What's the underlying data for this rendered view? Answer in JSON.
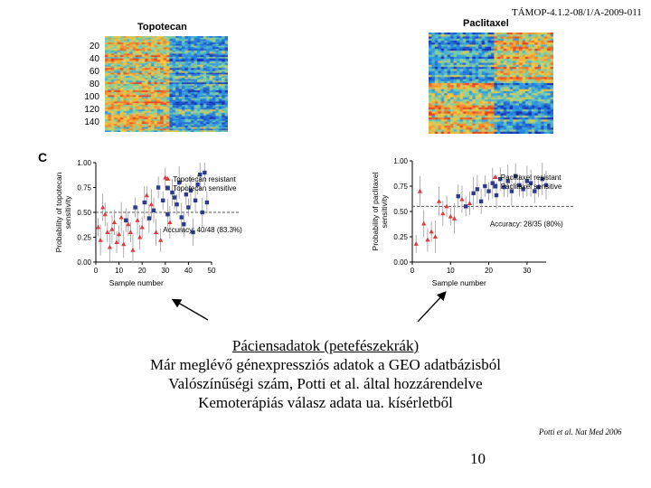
{
  "header": "TÁMOP-4.1.2-08/1/A-2009-011",
  "panel_label": "C",
  "heatmaps": [
    {
      "title": "Topotecan",
      "row_ticks": [
        "20",
        "40",
        "60",
        "80",
        "100",
        "120",
        "140"
      ]
    },
    {
      "title": "Paclitaxel"
    }
  ],
  "chart_data": [
    {
      "type": "scatter",
      "title": "",
      "xlabel": "Sample number",
      "ylabel": "Probability of topotecan sensitivity",
      "xlim": [
        0,
        50
      ],
      "ylim": [
        0,
        1
      ],
      "x_ticks": [
        "0",
        "10",
        "20",
        "30",
        "40",
        "50"
      ],
      "y_ticks": [
        "0.00",
        "0.25",
        "0.50",
        "0.75",
        "1.00"
      ],
      "threshold": 0.5,
      "legend": [
        {
          "name": "Topotecan resistant",
          "color": "#e03a3a",
          "marker": "triangle"
        },
        {
          "name": "Topotecan sensitive",
          "color": "#2e3a8c",
          "marker": "square"
        }
      ],
      "annotation": "Accuracy: 40/48 (83.3%)",
      "series": [
        {
          "name": "Topotecan resistant",
          "x": [
            1,
            2,
            3,
            4,
            5,
            6,
            7,
            8,
            9,
            10,
            11,
            12,
            14,
            15,
            16,
            18,
            19,
            20,
            22,
            24,
            26,
            28,
            30,
            32
          ],
          "y": [
            0.35,
            0.22,
            0.55,
            0.48,
            0.3,
            0.15,
            0.33,
            0.4,
            0.2,
            0.28,
            0.45,
            0.18,
            0.38,
            0.3,
            0.12,
            0.42,
            0.25,
            0.35,
            0.67,
            0.58,
            0.3,
            0.22,
            0.85,
            0.4
          ]
        },
        {
          "name": "Topotecan sensitive",
          "x": [
            13,
            17,
            21,
            23,
            25,
            27,
            29,
            31,
            33,
            34,
            35,
            36,
            37,
            38,
            39,
            40,
            41,
            42,
            43,
            44,
            45,
            46,
            47,
            48
          ],
          "y": [
            0.42,
            0.55,
            0.6,
            0.44,
            0.52,
            0.75,
            0.62,
            0.48,
            0.7,
            0.65,
            0.58,
            0.8,
            0.45,
            0.38,
            0.68,
            0.55,
            0.72,
            0.3,
            0.62,
            0.78,
            0.88,
            0.5,
            0.9,
            0.6
          ]
        }
      ]
    },
    {
      "type": "scatter",
      "title": "",
      "xlabel": "Sample number",
      "ylabel": "Probability of paclitaxel sensitivity",
      "xlim": [
        0,
        35
      ],
      "ylim": [
        0,
        1
      ],
      "x_ticks": [
        "0",
        "10",
        "20",
        "30"
      ],
      "y_ticks": [
        "0.00",
        "0.25",
        "0.50",
        "0.75",
        "1.00"
      ],
      "threshold": 0.55,
      "legend": [
        {
          "name": "Paclitaxel resistant",
          "color": "#e03a3a",
          "marker": "triangle"
        },
        {
          "name": "Paclitaxel sensitive",
          "color": "#2e3a8c",
          "marker": "square"
        }
      ],
      "annotation": "Accuracy: 28/35 (80%)",
      "series": [
        {
          "name": "Paclitaxel resistant",
          "x": [
            1,
            2,
            3,
            4,
            5,
            6,
            7,
            8,
            9,
            10,
            11,
            13,
            15
          ],
          "y": [
            0.18,
            0.7,
            0.38,
            0.22,
            0.3,
            0.25,
            0.6,
            0.48,
            0.55,
            0.45,
            0.43,
            0.62,
            0.58
          ]
        },
        {
          "name": "Paclitaxel sensitive",
          "x": [
            12,
            14,
            16,
            17,
            18,
            19,
            20,
            21,
            22,
            23,
            24,
            25,
            26,
            27,
            28,
            29,
            30,
            31,
            32,
            33,
            34,
            35
          ],
          "y": [
            0.65,
            0.55,
            0.68,
            0.72,
            0.6,
            0.75,
            0.7,
            0.78,
            0.66,
            0.82,
            0.74,
            0.8,
            0.7,
            0.85,
            0.76,
            0.72,
            0.8,
            0.78,
            0.7,
            0.74,
            0.82,
            0.76
          ]
        }
      ]
    }
  ],
  "caption": {
    "line1": "Páciensadatok (petefészekrák)",
    "line2": "Már meglévő génexpressziós adatok a  GEO adatbázisból",
    "line3": "Valószínűségi szám, Potti et al. által hozzárendelve",
    "line4": "Kemoterápiás válasz adata ua. kísérletből"
  },
  "citation": "Potti et al. Nat Med 2006",
  "page_number": "10",
  "colors": {
    "resistant": "#e03a3a",
    "sensitive": "#2e3a8c",
    "threshold": "#555555"
  }
}
